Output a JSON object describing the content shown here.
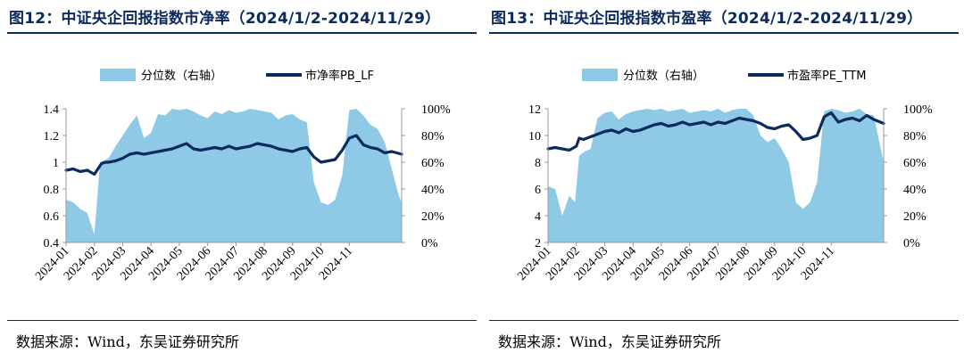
{
  "charts": [
    {
      "figure_title": "图12：中证央企回报指数市净率（2024/1/2-2024/11/29）",
      "source": "数据来源：Wind，东吴证券研究所",
      "chart_data": {
        "type": "area+line",
        "legend": [
          {
            "name": "分位数（右轴）",
            "kind": "area",
            "color": "#8ecae6"
          },
          {
            "name": "市净率PB_LF",
            "kind": "line",
            "color": "#0b2a5e"
          }
        ],
        "legend_placement": "top",
        "x_ticks": [
          "2024-01",
          "2024-02",
          "2024-03",
          "2024-04",
          "2024-05",
          "2024-06",
          "2024-07",
          "2024-08",
          "2024-09",
          "2024-10",
          "2024-11"
        ],
        "y_left": {
          "min": 0.4,
          "max": 1.4,
          "ticks": [
            "0.4",
            "0.6",
            "0.8",
            "1",
            "1.2",
            "1.4"
          ]
        },
        "y_right": {
          "min": 0,
          "max": 100,
          "ticks": [
            "0%",
            "20%",
            "40%",
            "60%",
            "80%",
            "100%"
          ]
        },
        "grid": false,
        "line_series": {
          "name": "市净率PB_LF",
          "x": [
            0,
            0.25,
            0.5,
            0.75,
            1,
            1.25,
            1.4,
            1.5,
            1.75,
            2,
            2.25,
            2.5,
            2.75,
            3,
            3.25,
            3.5,
            3.75,
            4,
            4.25,
            4.5,
            4.75,
            5,
            5.25,
            5.5,
            5.75,
            6,
            6.25,
            6.5,
            6.75,
            7,
            7.25,
            7.5,
            7.75,
            8,
            8.25,
            8.5,
            8.75,
            9,
            9.25,
            9.5,
            9.75,
            10,
            10.25,
            10.5,
            10.75,
            11,
            11.25,
            11.5,
            11.85
          ],
          "values": [
            0.94,
            0.95,
            0.93,
            0.94,
            0.91,
            0.99,
            1.0,
            1.0,
            1.01,
            1.03,
            1.06,
            1.07,
            1.06,
            1.07,
            1.08,
            1.09,
            1.1,
            1.12,
            1.14,
            1.1,
            1.09,
            1.1,
            1.11,
            1.1,
            1.12,
            1.1,
            1.11,
            1.12,
            1.14,
            1.13,
            1.12,
            1.1,
            1.09,
            1.08,
            1.1,
            1.11,
            1.04,
            1.0,
            1.01,
            1.02,
            1.09,
            1.18,
            1.2,
            1.13,
            1.11,
            1.1,
            1.07,
            1.08,
            1.06
          ]
        },
        "area_series": {
          "name": "分位数（右轴）",
          "x": [
            0,
            0.25,
            0.5,
            0.75,
            1,
            1.2,
            1.4,
            1.5,
            1.75,
            2,
            2.25,
            2.5,
            2.75,
            3,
            3.25,
            3.5,
            3.75,
            4,
            4.25,
            4.5,
            4.75,
            5,
            5.25,
            5.5,
            5.75,
            6,
            6.25,
            6.5,
            6.75,
            7,
            7.25,
            7.5,
            7.75,
            8,
            8.25,
            8.5,
            8.75,
            9,
            9.25,
            9.5,
            9.75,
            10,
            10.25,
            10.5,
            10.75,
            11,
            11.25,
            11.5,
            11.75,
            11.85
          ],
          "values": [
            32,
            30,
            25,
            22,
            6,
            60,
            62,
            63,
            72,
            80,
            88,
            95,
            78,
            82,
            96,
            95,
            100,
            99,
            100,
            98,
            95,
            93,
            98,
            96,
            99,
            97,
            98,
            100,
            99,
            98,
            97,
            92,
            95,
            96,
            92,
            90,
            45,
            30,
            28,
            32,
            50,
            99,
            100,
            95,
            88,
            85,
            75,
            55,
            35,
            30
          ]
        }
      }
    },
    {
      "figure_title": "图13：中证央企回报指数市盈率（2024/1/2-2024/11/29）",
      "source": "数据来源：Wind，东吴证券研究所",
      "chart_data": {
        "type": "area+line",
        "legend": [
          {
            "name": "分位数（右轴）",
            "kind": "area",
            "color": "#8ecae6"
          },
          {
            "name": "市盈率PE_TTM",
            "kind": "line",
            "color": "#0b2a5e"
          }
        ],
        "legend_placement": "top",
        "x_ticks": [
          "2024-01",
          "2024-02",
          "2024-03",
          "2024-04",
          "2024-05",
          "2024-06",
          "2024-07",
          "2024-08",
          "2024-09",
          "2024-10",
          "2024-11"
        ],
        "y_left": {
          "min": 2,
          "max": 12,
          "ticks": [
            "2",
            "4",
            "6",
            "8",
            "10",
            "12"
          ]
        },
        "y_right": {
          "min": 0,
          "max": 100,
          "ticks": [
            "0%",
            "20%",
            "40%",
            "60%",
            "80%",
            "100%"
          ]
        },
        "grid": false,
        "line_series": {
          "name": "市盈率PE_TTM",
          "x": [
            0,
            0.25,
            0.5,
            0.75,
            1,
            1.1,
            1.25,
            1.5,
            1.75,
            2,
            2.25,
            2.5,
            2.75,
            3,
            3.25,
            3.5,
            3.75,
            4,
            4.25,
            4.5,
            4.75,
            5,
            5.25,
            5.5,
            5.75,
            6,
            6.25,
            6.5,
            6.75,
            7,
            7.25,
            7.5,
            7.75,
            8,
            8.25,
            8.5,
            8.75,
            9,
            9.25,
            9.5,
            9.75,
            10,
            10.25,
            10.5,
            10.75,
            11,
            11.25,
            11.5,
            11.85
          ],
          "values": [
            9.0,
            9.1,
            9.0,
            8.9,
            9.2,
            9.8,
            9.7,
            9.9,
            10.1,
            10.3,
            10.4,
            10.2,
            10.5,
            10.3,
            10.4,
            10.6,
            10.8,
            10.9,
            10.7,
            10.8,
            11.0,
            10.8,
            10.9,
            11.0,
            10.8,
            11.0,
            10.9,
            11.1,
            11.3,
            11.2,
            11.1,
            10.9,
            10.6,
            10.5,
            10.7,
            10.8,
            10.3,
            9.7,
            9.8,
            10.0,
            11.4,
            11.7,
            11.0,
            11.2,
            11.3,
            11.1,
            11.5,
            11.2,
            10.9
          ]
        },
        "area_series": {
          "name": "分位数（右轴）",
          "x": [
            0,
            0.25,
            0.5,
            0.75,
            0.95,
            1.1,
            1.3,
            1.5,
            1.75,
            2,
            2.25,
            2.5,
            2.75,
            3,
            3.25,
            3.5,
            3.75,
            4,
            4.25,
            4.5,
            4.75,
            5,
            5.25,
            5.5,
            5.75,
            6,
            6.25,
            6.5,
            6.75,
            7,
            7.25,
            7.5,
            7.75,
            8,
            8.25,
            8.5,
            8.75,
            9,
            9.25,
            9.5,
            9.75,
            10,
            10.25,
            10.5,
            10.75,
            11,
            11.25,
            11.5,
            11.75,
            11.85
          ],
          "values": [
            42,
            40,
            20,
            35,
            30,
            65,
            68,
            70,
            93,
            97,
            98,
            92,
            96,
            98,
            99,
            100,
            99,
            100,
            98,
            99,
            100,
            97,
            98,
            99,
            98,
            100,
            97,
            99,
            100,
            100,
            95,
            80,
            75,
            78,
            70,
            60,
            30,
            25,
            30,
            45,
            98,
            100,
            99,
            97,
            98,
            100,
            96,
            95,
            70,
            60
          ]
        }
      }
    }
  ]
}
